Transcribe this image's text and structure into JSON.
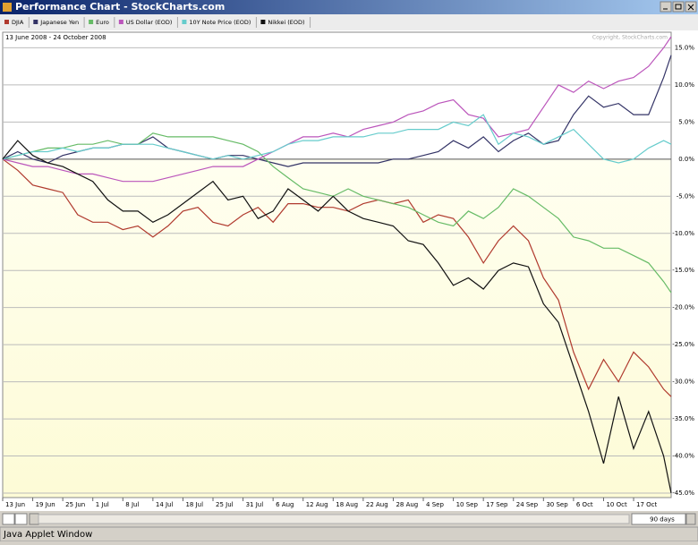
{
  "window": {
    "title": "Performance Chart - StockCharts.com",
    "status": "Java Applet Window"
  },
  "controls": {
    "period": "90 days"
  },
  "chart_data": {
    "type": "line",
    "subtitle": "13 June 2008 - 24 October 2008",
    "annotation": "Copyright, StockCharts.com",
    "x": [
      0,
      2,
      4,
      6,
      8,
      10,
      12,
      14,
      16,
      18,
      20,
      22,
      24,
      26,
      28,
      30,
      32,
      34,
      36,
      38,
      40,
      42,
      44,
      46,
      48,
      50,
      52,
      54,
      56,
      58,
      60,
      62,
      64,
      66,
      68,
      70,
      72,
      74,
      76,
      78,
      80,
      82,
      84,
      86,
      88,
      89
    ],
    "xlim": [
      0,
      89
    ],
    "xticks": [
      {
        "value": 0,
        "label": "13 Jun"
      },
      {
        "value": 4,
        "label": "19 Jun"
      },
      {
        "value": 8,
        "label": "25 Jun"
      },
      {
        "value": 12,
        "label": "1 Jul"
      },
      {
        "value": 16,
        "label": "8 Jul"
      },
      {
        "value": 20,
        "label": "14 Jul"
      },
      {
        "value": 24,
        "label": "18 Jul"
      },
      {
        "value": 28,
        "label": "25 Jul"
      },
      {
        "value": 32,
        "label": "31 Jul"
      },
      {
        "value": 36,
        "label": "6 Aug"
      },
      {
        "value": 40,
        "label": "12 Aug"
      },
      {
        "value": 44,
        "label": "18 Aug"
      },
      {
        "value": 48,
        "label": "22 Aug"
      },
      {
        "value": 52,
        "label": "28 Aug"
      },
      {
        "value": 56,
        "label": "4 Sep"
      },
      {
        "value": 60,
        "label": "10 Sep"
      },
      {
        "value": 64,
        "label": "17 Sep"
      },
      {
        "value": 68,
        "label": "24 Sep"
      },
      {
        "value": 72,
        "label": "30 Sep"
      },
      {
        "value": 76,
        "label": "6 Oct"
      },
      {
        "value": 80,
        "label": "10 Oct"
      },
      {
        "value": 84,
        "label": "17 Oct"
      }
    ],
    "ylim": [
      -45.6,
      17.1
    ],
    "yticks": [
      {
        "value": 15,
        "label": "15.0%"
      },
      {
        "value": 10,
        "label": "10.0%"
      },
      {
        "value": 5,
        "label": "5.0%"
      },
      {
        "value": 0,
        "label": "0.0%"
      },
      {
        "value": -5,
        "label": "-5.0%"
      },
      {
        "value": -10,
        "label": "-10.0%"
      },
      {
        "value": -15,
        "label": "-15.0%"
      },
      {
        "value": -20,
        "label": "-20.0%"
      },
      {
        "value": -25,
        "label": "-25.0%"
      },
      {
        "value": -30,
        "label": "-30.0%"
      },
      {
        "value": -35,
        "label": "-35.0%"
      },
      {
        "value": -40,
        "label": "-40.0%"
      },
      {
        "value": -45,
        "label": "-45.0%"
      }
    ],
    "grid": true,
    "series": [
      {
        "name": "DJIA",
        "color": "#b03a2e",
        "values": [
          0,
          -1.5,
          -3.5,
          -4,
          -4.5,
          -7.5,
          -8.5,
          -8.5,
          -9.5,
          -9,
          -10.5,
          -9,
          -7,
          -6.5,
          -8.5,
          -9,
          -7.5,
          -6.5,
          -8.5,
          -6,
          -6,
          -6.5,
          -6.5,
          -7,
          -6,
          -5.5,
          -6,
          -5.5,
          -8.5,
          -7.5,
          -8,
          -10.5,
          -14,
          -11,
          -9,
          -11,
          -16,
          -19,
          -26,
          -31,
          -27,
          -30,
          -26,
          -28,
          -31,
          -32
        ]
      },
      {
        "name": "Japanese Yen",
        "color": "#333366",
        "values": [
          0,
          1,
          0,
          -0.5,
          0.5,
          1,
          1.5,
          1.5,
          2,
          2,
          3,
          1.5,
          1,
          0.5,
          0,
          0.5,
          0.5,
          0,
          -0.5,
          -1,
          -0.5,
          -0.5,
          -0.5,
          -0.5,
          -0.5,
          -0.5,
          0,
          0,
          0.5,
          1,
          2.5,
          1.5,
          3,
          1,
          2.5,
          3.5,
          2,
          2.5,
          6,
          8.5,
          7,
          7.5,
          6,
          6,
          11,
          14
        ]
      },
      {
        "name": "Euro",
        "color": "#66bb66",
        "values": [
          0,
          0.5,
          1,
          1.5,
          1.5,
          2,
          2,
          2.5,
          2,
          2,
          3.5,
          3,
          3,
          3,
          3,
          2.5,
          2,
          1,
          -1,
          -2.5,
          -4,
          -4.5,
          -5,
          -4,
          -5,
          -5.5,
          -6,
          -6.5,
          -7.5,
          -8.5,
          -9,
          -7,
          -8,
          -6.5,
          -4,
          -5,
          -6.5,
          -8,
          -10.5,
          -11,
          -12,
          -12,
          -13,
          -14,
          -16.5,
          -18
        ]
      },
      {
        "name": "US Dollar (EOD)",
        "color": "#bb55bb",
        "values": [
          0,
          -0.5,
          -1,
          -1,
          -1.5,
          -2,
          -2,
          -2.5,
          -3,
          -3,
          -3,
          -2.5,
          -2,
          -1.5,
          -1,
          -1,
          -1,
          0,
          1,
          2,
          3,
          3,
          3.5,
          3,
          4,
          4.5,
          5,
          6,
          6.5,
          7.5,
          8,
          6,
          5.5,
          3,
          3.5,
          4,
          7,
          10,
          9,
          10.5,
          9.5,
          10.5,
          11,
          12.5,
          15,
          16.5
        ]
      },
      {
        "name": "10Y Note Price (EOD)",
        "color": "#66cccc",
        "values": [
          0,
          0.5,
          1,
          1,
          1.5,
          1,
          1.5,
          1.5,
          2,
          2,
          2,
          1.5,
          1,
          0.5,
          0,
          0.5,
          0,
          0.5,
          1,
          2,
          2.5,
          2.5,
          3,
          3,
          3,
          3.5,
          3.5,
          4,
          4,
          4,
          5,
          4.5,
          6,
          2,
          3.5,
          3,
          2,
          3,
          4,
          2,
          0,
          -0.5,
          0,
          1.5,
          2.5,
          2
        ]
      },
      {
        "name": "Nikkei (EOD)",
        "color": "#111111",
        "values": [
          0,
          2.5,
          0.5,
          -0.5,
          -1,
          -2,
          -3,
          -5.5,
          -7,
          -7,
          -8.5,
          -7.5,
          -6,
          -4.5,
          -3,
          -5.5,
          -5,
          -8,
          -7,
          -4,
          -5.5,
          -7,
          -5,
          -7,
          -8,
          -8.5,
          -9,
          -11,
          -11.5,
          -14,
          -17,
          -16,
          -17.5,
          -15,
          -14,
          -14.5,
          -19.5,
          -22,
          -28,
          -34,
          -41,
          -32,
          -39,
          -34,
          -40,
          -45
        ]
      }
    ]
  }
}
